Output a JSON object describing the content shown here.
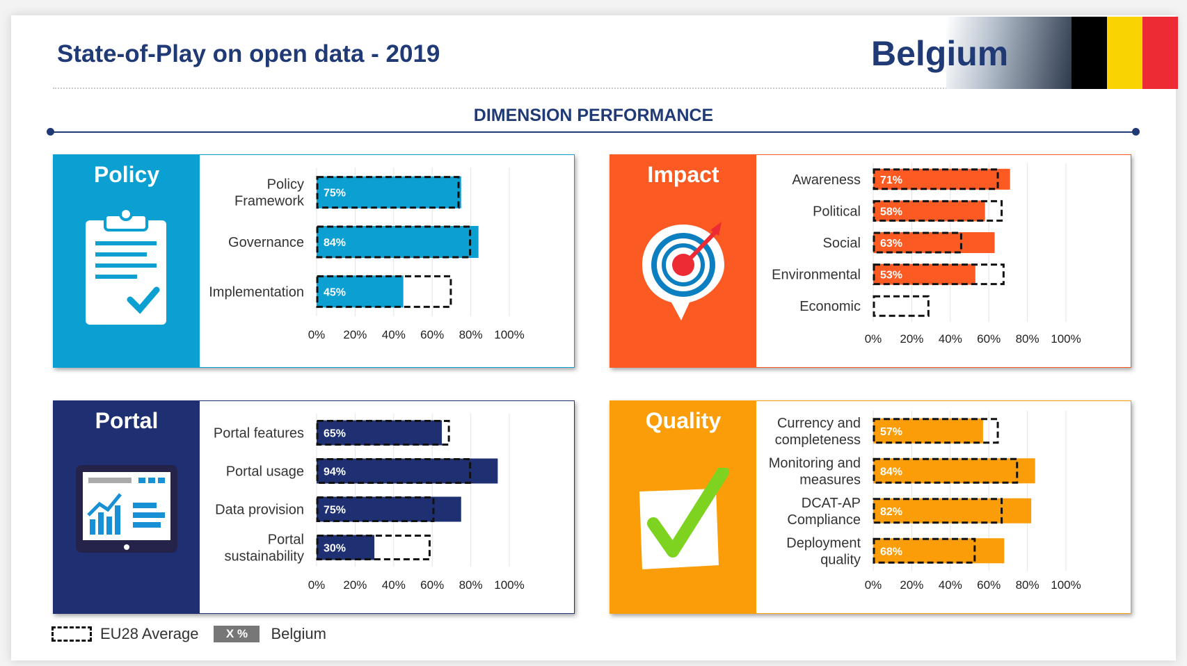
{
  "header": {
    "title": "State-of-Play on open data - 2019",
    "country": "Belgium",
    "section_title": "DIMENSION PERFORMANCE"
  },
  "colors": {
    "navy": "#1f3a75",
    "policy": "#0b9fd2",
    "impact": "#fb5a22",
    "portal": "#1e2f72",
    "quality": "#fb9d08",
    "flag": [
      "#000000",
      "#fad402",
      "#ec2b35"
    ]
  },
  "legend": {
    "eu_label": "EU28 Average",
    "swatch_text": "X %",
    "country_label": "Belgium"
  },
  "panels": [
    {
      "name": "Policy",
      "icon": "clipboard-icon"
    },
    {
      "name": "Impact",
      "icon": "target-icon"
    },
    {
      "name": "Portal",
      "icon": "monitor-chart-icon"
    },
    {
      "name": "Quality",
      "icon": "checkmark-icon"
    }
  ],
  "chart_data": [
    {
      "type": "bar",
      "orientation": "horizontal",
      "title": "Policy",
      "categories": [
        [
          "Policy",
          "Framework"
        ],
        [
          "Governance"
        ],
        [
          "Implementation"
        ]
      ],
      "series": [
        {
          "name": "Belgium",
          "values": [
            75,
            84,
            45
          ]
        },
        {
          "name": "EU28 Average",
          "values": [
            74,
            80,
            70
          ]
        }
      ],
      "value_labels": [
        "75%",
        "84%",
        "45%"
      ],
      "x_ticks": [
        "0%",
        "20%",
        "40%",
        "60%",
        "80%",
        "100%"
      ],
      "xlim": [
        0,
        100
      ],
      "grid": true
    },
    {
      "type": "bar",
      "orientation": "horizontal",
      "title": "Impact",
      "categories": [
        [
          "Awareness"
        ],
        [
          "Political"
        ],
        [
          "Social"
        ],
        [
          "Environmental"
        ],
        [
          "Economic"
        ]
      ],
      "series": [
        {
          "name": "Belgium",
          "values": [
            71,
            58,
            63,
            53,
            0
          ]
        },
        {
          "name": "EU28 Average",
          "values": [
            65,
            67,
            46,
            68,
            29
          ]
        }
      ],
      "value_labels": [
        "71%",
        "58%",
        "63%",
        "53%",
        ""
      ],
      "x_ticks": [
        "0%",
        "20%",
        "40%",
        "60%",
        "80%",
        "100%"
      ],
      "xlim": [
        0,
        100
      ],
      "grid": true
    },
    {
      "type": "bar",
      "orientation": "horizontal",
      "title": "Portal",
      "categories": [
        [
          "Portal features"
        ],
        [
          "Portal usage"
        ],
        [
          "Data provision"
        ],
        [
          "Portal",
          "sustainability"
        ]
      ],
      "series": [
        {
          "name": "Belgium",
          "values": [
            65,
            94,
            75,
            30
          ]
        },
        {
          "name": "EU28 Average",
          "values": [
            69,
            80,
            61,
            59
          ]
        }
      ],
      "value_labels": [
        "65%",
        "94%",
        "75%",
        "30%"
      ],
      "x_ticks": [
        "0%",
        "20%",
        "40%",
        "60%",
        "80%",
        "100%"
      ],
      "xlim": [
        0,
        100
      ],
      "grid": true
    },
    {
      "type": "bar",
      "orientation": "horizontal",
      "title": "Quality",
      "categories": [
        [
          "Currency and",
          "completeness"
        ],
        [
          "Monitoring and",
          "measures"
        ],
        [
          "DCAT-AP",
          "Compliance"
        ],
        [
          "Deployment",
          "quality"
        ]
      ],
      "series": [
        {
          "name": "Belgium",
          "values": [
            57,
            84,
            82,
            68
          ]
        },
        {
          "name": "EU28 Average",
          "values": [
            65,
            75,
            67,
            53
          ]
        }
      ],
      "value_labels": [
        "57%",
        "84%",
        "82%",
        "68%"
      ],
      "x_ticks": [
        "0%",
        "20%",
        "40%",
        "60%",
        "80%",
        "100%"
      ],
      "xlim": [
        0,
        100
      ],
      "grid": true
    }
  ]
}
